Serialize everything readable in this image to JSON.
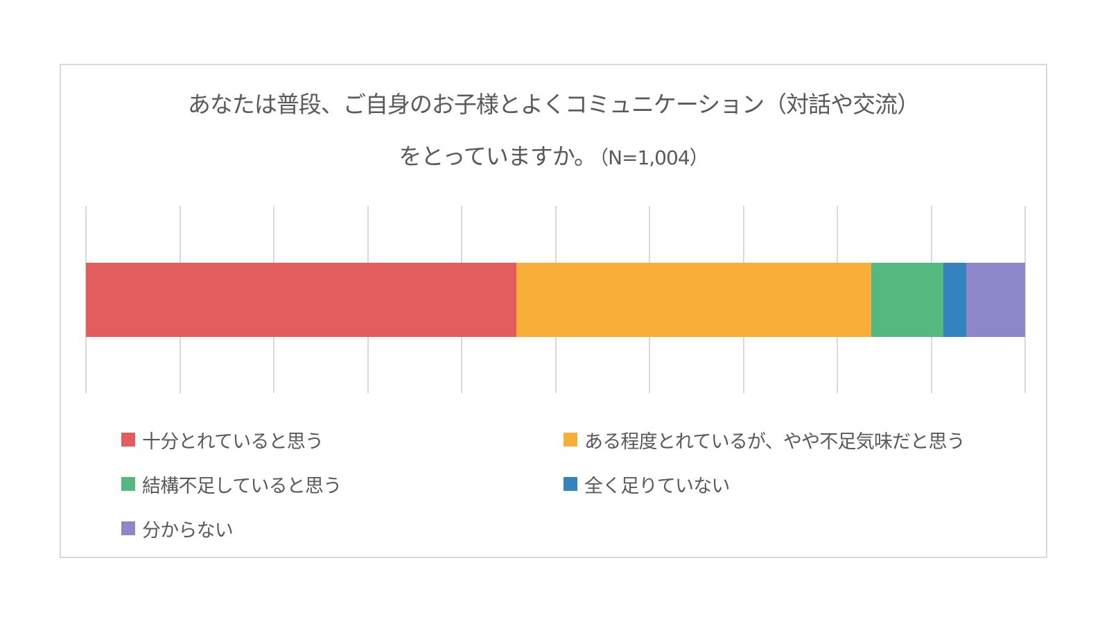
{
  "chart": {
    "title_line_1": "あなたは普段、ご自身のお子様とよくコミュニケーション（対話や交流）",
    "title_line_2": "をとっていますか。",
    "sample_size_label": "（N=1,004）"
  },
  "legend": [
    {
      "label": "十分とれていると思う",
      "color": "#e35d5f"
    },
    {
      "label": "ある程度とれているが、やや不足気味だと思う",
      "color": "#f9ae3a"
    },
    {
      "label": "結構不足していると思う",
      "color": "#55b87f"
    },
    {
      "label": "全く足りていない",
      "color": "#3483bf"
    },
    {
      "label": "分からない",
      "color": "#8b87c8"
    }
  ],
  "colors": {
    "title_text": "#595959",
    "gridline": "#d9d9d9",
    "frame_border": "#d9d9d9"
  },
  "chart_data": {
    "type": "bar",
    "orientation": "horizontal",
    "stacked": "100%",
    "title": "あなたは普段、ご自身のお子様とよくコミュニケーション（対話や交流）をとっていますか。（N=1,004）",
    "categories": [
      ""
    ],
    "series": [
      {
        "name": "十分とれていると思う",
        "values": [
          45.8
        ],
        "color": "#e35d5f"
      },
      {
        "name": "ある程度とれているが、やや不足気味だと思う",
        "values": [
          37.8
        ],
        "color": "#f9ae3a"
      },
      {
        "name": "結構不足していると思う",
        "values": [
          7.7
        ],
        "color": "#55b87f"
      },
      {
        "name": "全く足りていない",
        "values": [
          2.4
        ],
        "color": "#3483bf"
      },
      {
        "name": "分からない",
        "values": [
          6.3
        ],
        "color": "#8b87c8"
      }
    ],
    "xlim": [
      0,
      100
    ],
    "x_gridlines": [
      0,
      10,
      20,
      30,
      40,
      50,
      60,
      70,
      80,
      90,
      100
    ],
    "tick_labels_visible": false,
    "grid": true,
    "legend_position": "bottom",
    "xlabel": "",
    "ylabel": "",
    "unit": "%",
    "sample_size": 1004
  }
}
